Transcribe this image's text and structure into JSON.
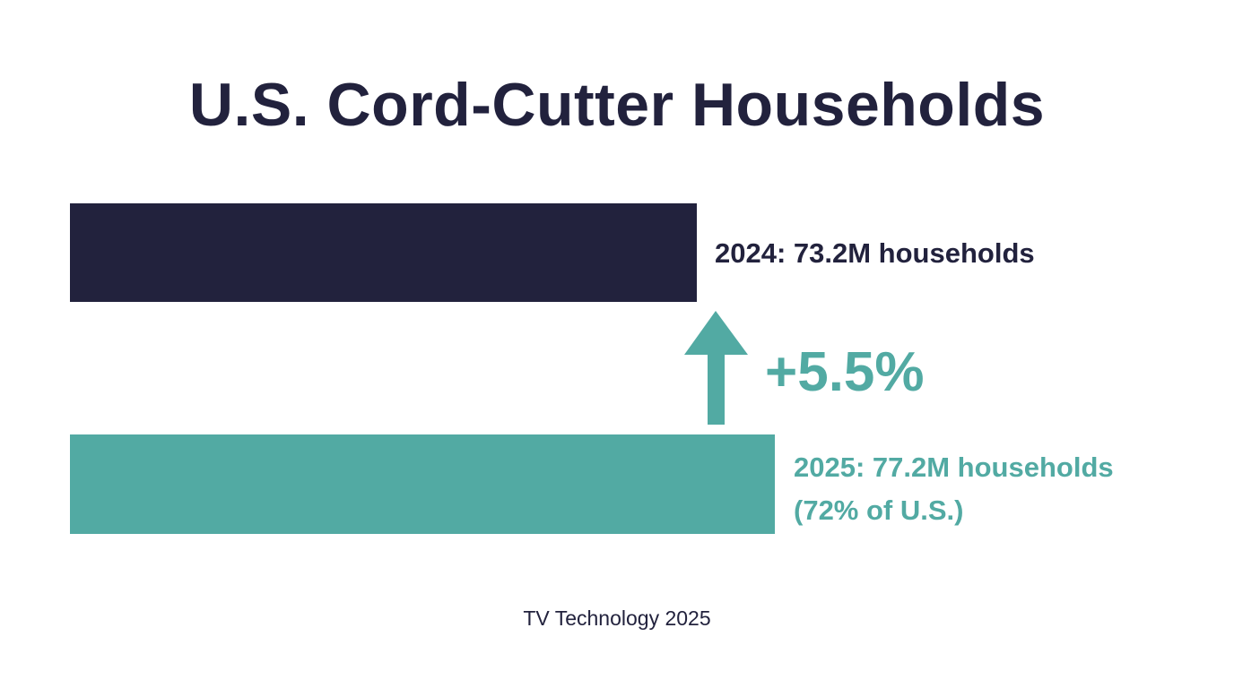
{
  "chart_data": {
    "type": "bar",
    "orientation": "horizontal",
    "title": "U.S. Cord-Cutter Households",
    "categories": [
      "2024",
      "2025"
    ],
    "values": [
      73.2,
      77.2
    ],
    "unit": "M households",
    "data_labels": [
      "2024: 73.2M households",
      "2025: 77.2M households"
    ],
    "annotation_2025": "(72% of U.S.)",
    "change_label": "+5.5%",
    "change_icon": "arrow-up-icon",
    "source": "TV Technology 2025",
    "grid": false,
    "colors": {
      "2024": "#22223d",
      "2025": "#52aaa3",
      "change": "#52aaa3",
      "title": "#22223d"
    }
  }
}
